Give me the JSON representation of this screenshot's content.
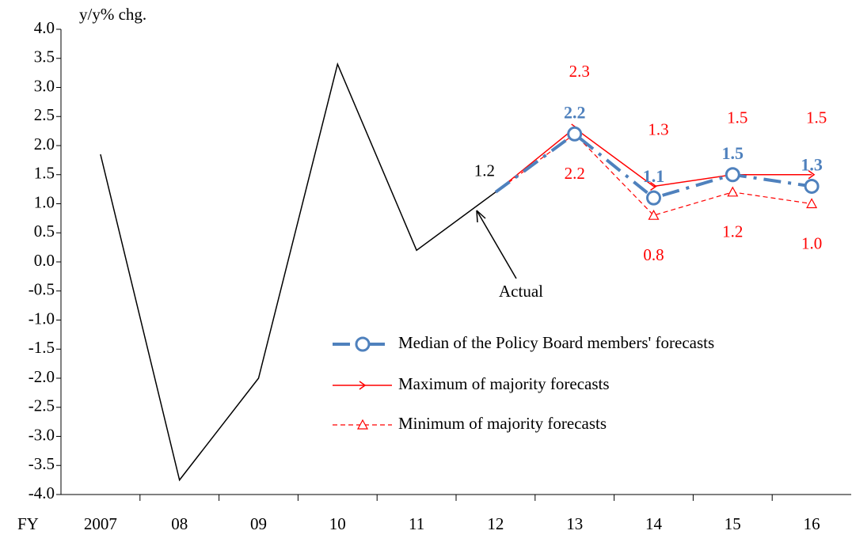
{
  "chart_data": {
    "type": "line",
    "y_axis_label": "y/y% chg.",
    "x_axis_prefix": "FY",
    "annotation": "Actual",
    "categories": [
      "2007",
      "08",
      "09",
      "10",
      "11",
      "12",
      "13",
      "14",
      "15",
      "16"
    ],
    "ylim": [
      -4,
      4
    ],
    "yticks": [
      {
        "value": 4,
        "label": "4.0"
      },
      {
        "value": 3.5,
        "label": "3.5"
      },
      {
        "value": 3,
        "label": "3.0"
      },
      {
        "value": 2.5,
        "label": "2.5"
      },
      {
        "value": 2,
        "label": "2.0"
      },
      {
        "value": 1.5,
        "label": "1.5"
      },
      {
        "value": 1,
        "label": "1.0"
      },
      {
        "value": 0.5,
        "label": "0.5"
      },
      {
        "value": 0,
        "label": "0.0"
      },
      {
        "value": -0.5,
        "label": "-0.5"
      },
      {
        "value": -1,
        "label": "-1.0"
      },
      {
        "value": -1.5,
        "label": "-1.5"
      },
      {
        "value": -2,
        "label": "-2.0"
      },
      {
        "value": -2.5,
        "label": "-2.5"
      },
      {
        "value": -3,
        "label": "-3.0"
      },
      {
        "value": -3.5,
        "label": "-3.5"
      },
      {
        "value": -4,
        "label": "-4.0"
      }
    ],
    "series": [
      {
        "color": "#000000",
        "values": [
          1.85,
          -3.75,
          -2.0,
          3.4,
          0.2,
          1.2,
          null,
          null,
          null,
          null
        ],
        "value_labels": [
          null,
          null,
          null,
          null,
          null,
          "1.2",
          null,
          null,
          null,
          null
        ]
      },
      {
        "name": "Median of the Policy Board members' forecasts",
        "color": "#4f81bd",
        "values": [
          null,
          null,
          null,
          null,
          null,
          1.2,
          2.2,
          1.1,
          1.5,
          1.3
        ],
        "value_labels": [
          null,
          null,
          null,
          null,
          null,
          null,
          "2.2",
          "1.1",
          "1.5",
          "1.3"
        ]
      },
      {
        "name": "Maximum of majority forecasts",
        "color": "#ff0000",
        "values": [
          null,
          null,
          null,
          null,
          null,
          1.2,
          2.3,
          1.3,
          1.5,
          1.5
        ],
        "value_labels": [
          null,
          null,
          null,
          null,
          null,
          null,
          "2.3",
          "1.3",
          "1.5",
          "1.5"
        ]
      },
      {
        "name": "Minimum of majority forecasts",
        "color": "#ff0000",
        "values": [
          null,
          null,
          null,
          null,
          null,
          1.2,
          2.2,
          0.8,
          1.2,
          1.0
        ],
        "value_labels": [
          null,
          null,
          null,
          null,
          null,
          null,
          "2.2",
          "0.8",
          "1.2",
          "1.0"
        ]
      }
    ]
  }
}
